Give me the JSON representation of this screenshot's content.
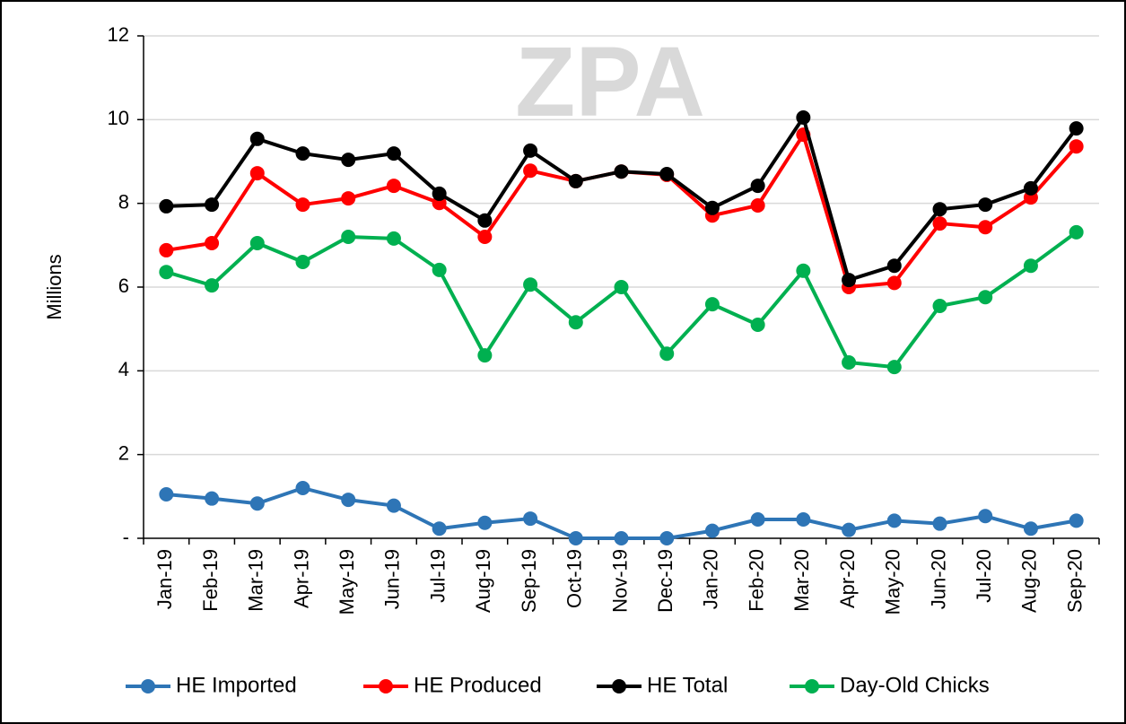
{
  "chart_data": {
    "type": "line",
    "watermark": "ZPA",
    "ylabel": "Millions",
    "categories": [
      "Jan-19",
      "Feb-19",
      "Mar-19",
      "Apr-19",
      "May-19",
      "Jun-19",
      "Jul-19",
      "Aug-19",
      "Sep-19",
      "Oct-19",
      "Nov-19",
      "Dec-19",
      "Jan-20",
      "Feb-20",
      "Mar-20",
      "Apr-20",
      "May-20",
      "Jun-20",
      "Jul-20",
      "Aug-20",
      "Sep-20"
    ],
    "series": [
      {
        "name": "HE Imported",
        "color": "#2e75b6",
        "values": [
          1.05,
          0.95,
          0.83,
          1.2,
          0.92,
          0.78,
          0.23,
          0.37,
          0.47,
          0.0,
          0.0,
          0.0,
          0.18,
          0.45,
          0.45,
          0.2,
          0.42,
          0.35,
          0.53,
          0.23,
          0.42
        ]
      },
      {
        "name": "HE Produced",
        "color": "#ff0000",
        "values": [
          6.88,
          7.05,
          8.72,
          7.97,
          8.12,
          8.42,
          8.01,
          7.2,
          8.78,
          8.53,
          8.76,
          8.68,
          7.71,
          7.95,
          9.64,
          6.0,
          6.1,
          7.52,
          7.43,
          8.14,
          9.36
        ]
      },
      {
        "name": "HE Total",
        "color": "#000000",
        "values": [
          7.93,
          7.97,
          9.54,
          9.19,
          9.04,
          9.19,
          8.23,
          7.59,
          9.26,
          8.53,
          8.76,
          8.7,
          7.89,
          8.42,
          10.05,
          6.17,
          6.51,
          7.86,
          7.97,
          8.36,
          9.79
        ]
      },
      {
        "name": "Day-Old Chicks",
        "color": "#00b050",
        "values": [
          6.36,
          6.04,
          7.05,
          6.6,
          7.2,
          7.16,
          6.41,
          4.37,
          6.06,
          5.16,
          6.0,
          4.41,
          5.59,
          5.1,
          6.39,
          4.2,
          4.09,
          5.55,
          5.76,
          6.51,
          7.31
        ]
      }
    ],
    "ylim": [
      0,
      12
    ],
    "yticks": [
      {
        "value": 0,
        "label": "-"
      },
      2,
      4,
      6,
      8,
      10,
      12
    ],
    "grid": true,
    "legend": "bottom"
  }
}
